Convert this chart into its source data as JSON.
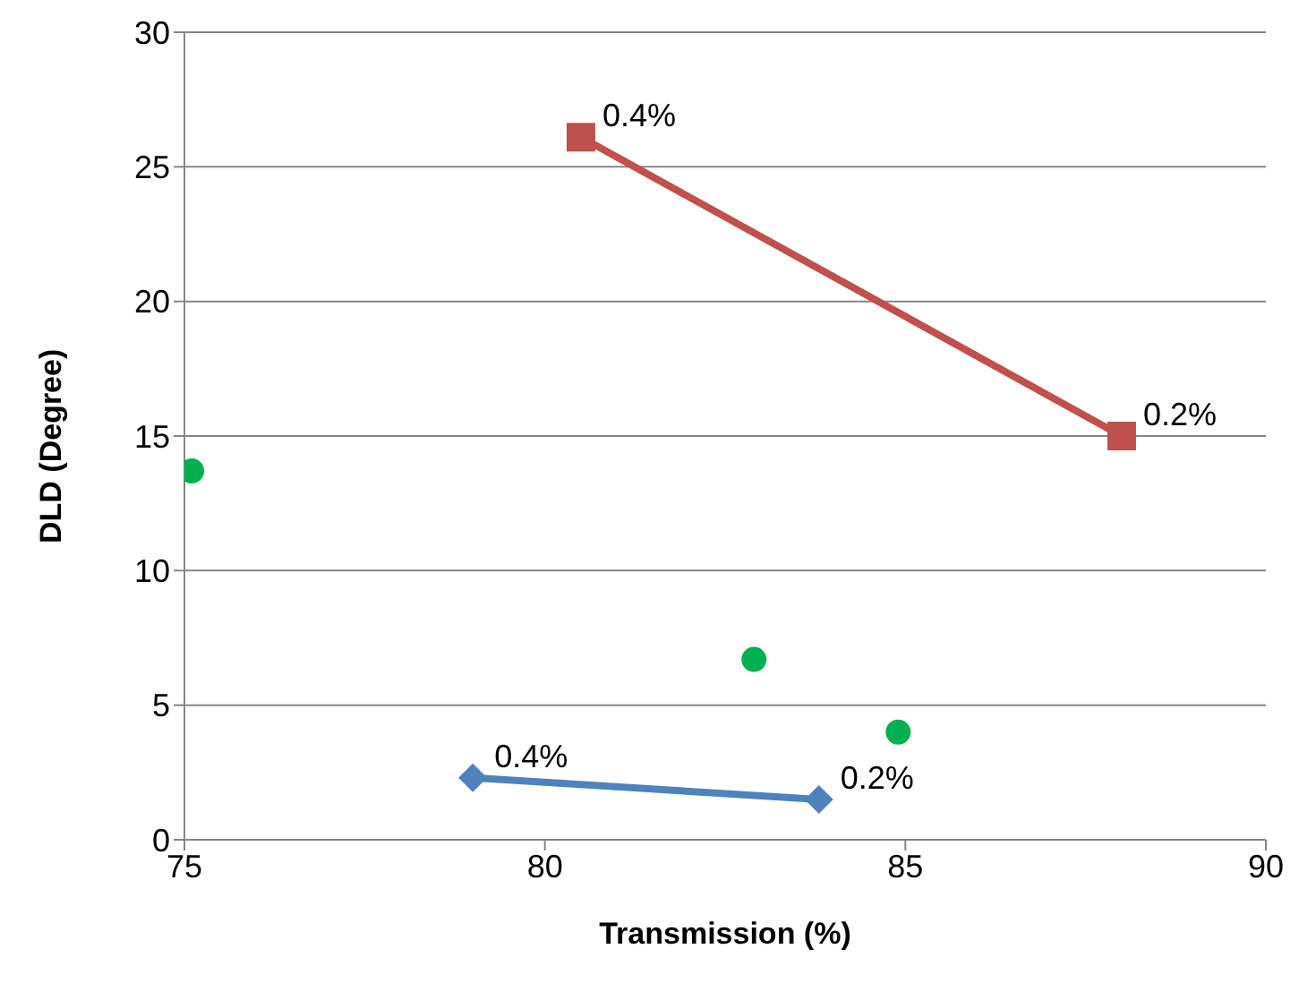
{
  "chart_data": {
    "type": "scatter",
    "xlabel": "Transmission  (%)",
    "ylabel": "DLD (Degree)",
    "xlim": [
      75,
      90
    ],
    "xticks": [
      75,
      80,
      85,
      90
    ],
    "ylim": [
      0,
      30
    ],
    "yticks": [
      0,
      5,
      10,
      15,
      20,
      25,
      30
    ],
    "grid": "y",
    "line_style": "solid",
    "series": [
      {
        "type": "line",
        "marker": "square",
        "color": "#c0504d",
        "x": [
          80.5,
          88
        ],
        "values": [
          26.1,
          15
        ]
      },
      {
        "type": "line",
        "marker": "diamond",
        "color": "#4f81bd",
        "x": [
          79,
          83.8
        ],
        "values": [
          2.3,
          1.5
        ]
      },
      {
        "marker": "circle",
        "color": "#00b050",
        "x": [
          75.1,
          82.9,
          84.9
        ],
        "values": [
          13.7,
          6.7,
          4
        ]
      }
    ],
    "annotations": [
      {
        "text": "0.4%",
        "x": 80.5,
        "y": 26.1
      },
      {
        "text": "0.2%",
        "x": 88,
        "y": 15
      },
      {
        "text": "0.4%",
        "x": 79,
        "y": 2.3
      },
      {
        "text": "0.2%",
        "x": 83.8,
        "y": 1.5
      }
    ]
  }
}
